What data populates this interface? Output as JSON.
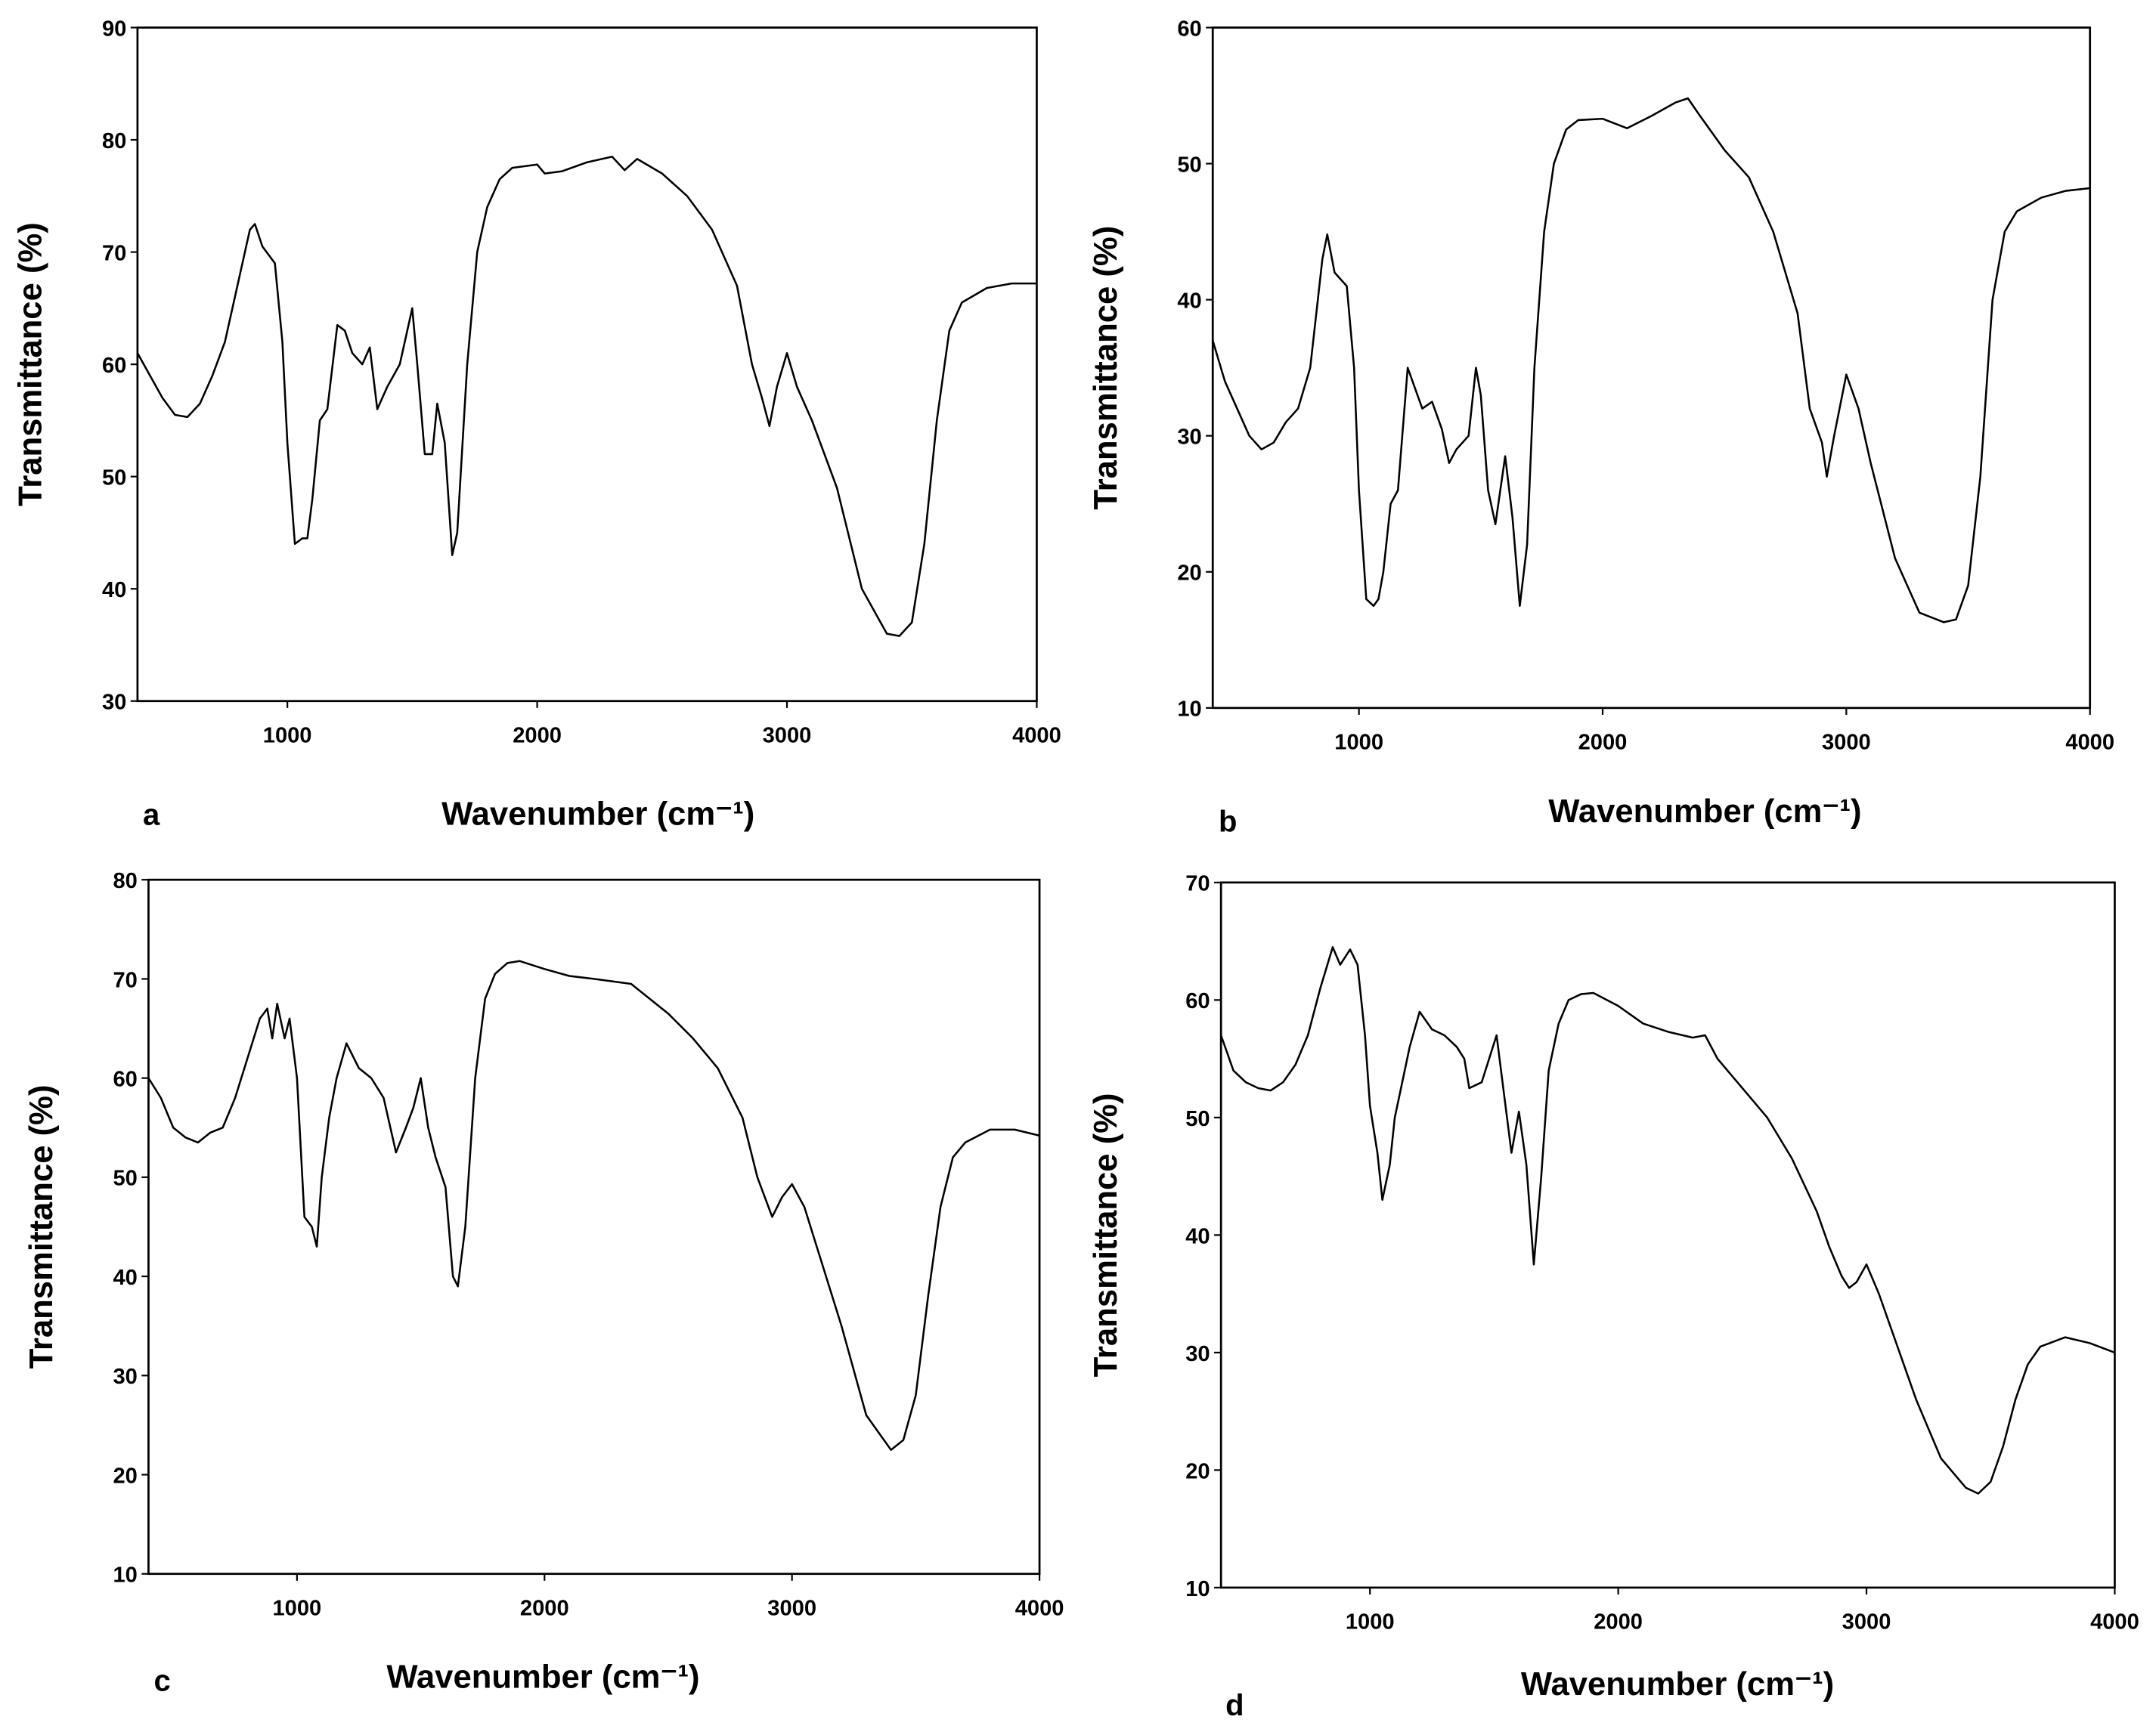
{
  "chart_data": [
    {
      "type": "line",
      "label": "a",
      "x_label": "Wavenumber (cm⁻¹)",
      "y_label": "Transmittance (%)",
      "color": "#000000",
      "grid": false,
      "xlim": [
        400,
        4000
      ],
      "xticks": [
        1000,
        2000,
        3000,
        4000
      ],
      "ylim": [
        30,
        90
      ],
      "yticks": [
        30,
        40,
        50,
        60,
        70,
        80,
        90
      ],
      "x": [
        400,
        450,
        500,
        550,
        600,
        650,
        700,
        750,
        800,
        850,
        870,
        900,
        950,
        980,
        1000,
        1030,
        1060,
        1080,
        1100,
        1130,
        1160,
        1200,
        1230,
        1260,
        1300,
        1330,
        1360,
        1400,
        1450,
        1480,
        1500,
        1520,
        1550,
        1580,
        1600,
        1630,
        1660,
        1680,
        1720,
        1760,
        1800,
        1850,
        1900,
        2000,
        2030,
        2100,
        2200,
        2300,
        2350,
        2400,
        2500,
        2600,
        2700,
        2800,
        2860,
        2900,
        2930,
        2960,
        3000,
        3040,
        3100,
        3200,
        3300,
        3400,
        3450,
        3500,
        3550,
        3600,
        3650,
        3700,
        3800,
        3900,
        4000
      ],
      "values": [
        61,
        59,
        57,
        55.5,
        55.3,
        56.5,
        59,
        62,
        67,
        72,
        72.5,
        70.5,
        69,
        62,
        53,
        44,
        44.5,
        44.5,
        48,
        55,
        56,
        63.5,
        63,
        61,
        60,
        61.5,
        56,
        58,
        60,
        63,
        65,
        60,
        52,
        52,
        56.5,
        53,
        43,
        45,
        60,
        70,
        74,
        76.5,
        77.5,
        77.8,
        77,
        77.2,
        78,
        78.5,
        77.3,
        78.3,
        77,
        75,
        72,
        67,
        60,
        57,
        54.5,
        58,
        61,
        58,
        55,
        49,
        40,
        36,
        35.8,
        37,
        44,
        55,
        63,
        65.5,
        66.8,
        67.2,
        67.2
      ]
    },
    {
      "type": "line",
      "label": "b",
      "x_label": "Wavenumber (cm⁻¹)",
      "y_label": "Transmittance (%)",
      "color": "#000000",
      "grid": false,
      "xlim": [
        400,
        4000
      ],
      "xticks": [
        1000,
        2000,
        3000,
        4000
      ],
      "ylim": [
        10,
        60
      ],
      "yticks": [
        10,
        20,
        30,
        40,
        50,
        60
      ],
      "x": [
        400,
        450,
        500,
        550,
        600,
        650,
        700,
        750,
        800,
        850,
        870,
        900,
        950,
        980,
        1000,
        1030,
        1060,
        1080,
        1100,
        1130,
        1160,
        1200,
        1230,
        1260,
        1300,
        1340,
        1370,
        1400,
        1450,
        1480,
        1500,
        1530,
        1560,
        1600,
        1630,
        1660,
        1690,
        1720,
        1760,
        1800,
        1850,
        1900,
        2000,
        2100,
        2200,
        2300,
        2350,
        2400,
        2500,
        2600,
        2700,
        2800,
        2850,
        2900,
        2920,
        2950,
        3000,
        3050,
        3100,
        3200,
        3300,
        3400,
        3450,
        3500,
        3550,
        3600,
        3650,
        3700,
        3800,
        3900,
        4000
      ],
      "values": [
        37,
        34,
        32,
        30,
        29,
        29.5,
        31,
        32,
        35,
        43,
        44.8,
        42,
        41,
        35,
        26,
        18,
        17.5,
        18,
        20,
        25,
        26,
        35,
        33.5,
        32,
        32.5,
        30.5,
        28,
        29,
        30,
        35,
        33,
        26,
        23.5,
        28.5,
        24,
        17.5,
        22,
        35,
        45,
        50,
        52.5,
        53.2,
        53.3,
        52.6,
        53.5,
        54.5,
        54.8,
        53.5,
        51,
        49,
        45,
        39,
        32,
        29.5,
        27,
        30,
        34.5,
        32,
        28,
        21,
        17,
        16.3,
        16.5,
        19,
        27,
        40,
        45,
        46.5,
        47.5,
        48,
        48.2
      ]
    },
    {
      "type": "line",
      "label": "c",
      "x_label": "Wavenumber (cm⁻¹)",
      "y_label": "Transmittance (%)",
      "color": "#000000",
      "grid": false,
      "xlim": [
        400,
        4000
      ],
      "xticks": [
        1000,
        2000,
        3000,
        4000
      ],
      "ylim": [
        10,
        80
      ],
      "yticks": [
        10,
        20,
        30,
        40,
        50,
        60,
        70,
        80
      ],
      "x": [
        400,
        450,
        500,
        550,
        600,
        650,
        700,
        750,
        800,
        850,
        880,
        900,
        920,
        950,
        970,
        1000,
        1030,
        1060,
        1080,
        1100,
        1130,
        1160,
        1200,
        1250,
        1300,
        1350,
        1400,
        1440,
        1470,
        1500,
        1530,
        1560,
        1600,
        1630,
        1650,
        1680,
        1720,
        1760,
        1800,
        1850,
        1900,
        2000,
        2100,
        2200,
        2350,
        2400,
        2500,
        2600,
        2700,
        2800,
        2860,
        2920,
        2960,
        3000,
        3050,
        3100,
        3200,
        3300,
        3400,
        3450,
        3500,
        3550,
        3600,
        3650,
        3700,
        3800,
        3900,
        4000
      ],
      "values": [
        60,
        58,
        55,
        54,
        53.5,
        54.5,
        55,
        58,
        62,
        66,
        67,
        64,
        67.5,
        64,
        66,
        60,
        46,
        45,
        43,
        50,
        56,
        60,
        63.5,
        61,
        60,
        58,
        52.5,
        55,
        57,
        60,
        55,
        52,
        49,
        40,
        39,
        45,
        60,
        68,
        70.5,
        71.6,
        71.8,
        71,
        70.3,
        70,
        69.5,
        68.5,
        66.5,
        64,
        61,
        56,
        50,
        46,
        48,
        49.3,
        47,
        43,
        35,
        26,
        22.5,
        23.5,
        28,
        38,
        47,
        52,
        53.5,
        54.8,
        54.8,
        54.2
      ]
    },
    {
      "type": "line",
      "label": "d",
      "x_label": "Wavenumber (cm⁻¹)",
      "y_label": "Transmittance (%)",
      "color": "#000000",
      "grid": false,
      "xlim": [
        400,
        4000
      ],
      "xticks": [
        1000,
        2000,
        3000,
        4000
      ],
      "ylim": [
        10,
        70
      ],
      "yticks": [
        10,
        20,
        30,
        40,
        50,
        60,
        70
      ],
      "x": [
        400,
        450,
        500,
        550,
        600,
        650,
        700,
        750,
        800,
        850,
        880,
        920,
        950,
        980,
        1000,
        1030,
        1050,
        1080,
        1100,
        1130,
        1160,
        1200,
        1250,
        1300,
        1350,
        1380,
        1400,
        1450,
        1480,
        1510,
        1540,
        1570,
        1600,
        1630,
        1660,
        1690,
        1720,
        1760,
        1800,
        1850,
        1900,
        2000,
        2100,
        2200,
        2300,
        2350,
        2400,
        2500,
        2600,
        2700,
        2800,
        2850,
        2900,
        2930,
        2960,
        3000,
        3050,
        3100,
        3200,
        3300,
        3400,
        3450,
        3500,
        3550,
        3600,
        3650,
        3700,
        3800,
        3900,
        4000
      ],
      "values": [
        57,
        54,
        53,
        52.5,
        52.3,
        53,
        54.5,
        57,
        61,
        64.5,
        63,
        64.3,
        63,
        57,
        51,
        47,
        43,
        46,
        50,
        53,
        56,
        59,
        57.5,
        57,
        56,
        55,
        52.5,
        53,
        55,
        57,
        52,
        47,
        50.5,
        46,
        37.5,
        45,
        54,
        58,
        60,
        60.5,
        60.6,
        59.5,
        58,
        57.3,
        56.8,
        57,
        55,
        52.5,
        50,
        46.5,
        42,
        39,
        36.5,
        35.5,
        36,
        37.5,
        35,
        32,
        26,
        21,
        18.5,
        18,
        19,
        22,
        26,
        29,
        30.5,
        31.3,
        30.8,
        30
      ]
    }
  ]
}
